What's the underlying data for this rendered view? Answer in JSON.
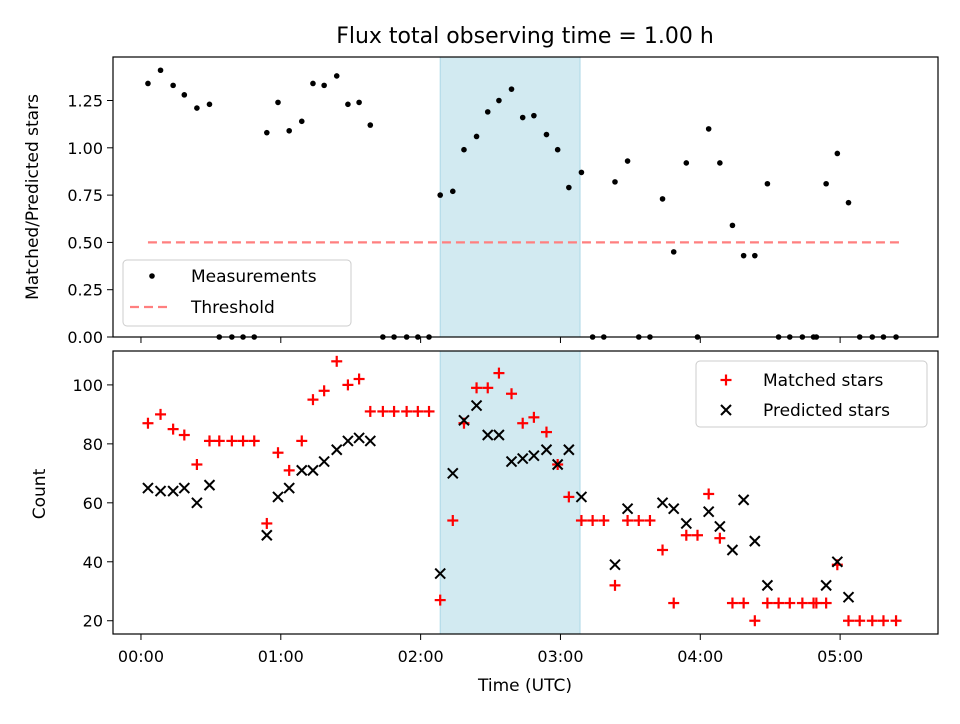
{
  "chart_data": {
    "title": "Flux total observing time = 1.00 h",
    "xlabel": "Time (UTC)",
    "x_ticks": [
      "00:00",
      "01:00",
      "02:00",
      "03:00",
      "04:00",
      "05:00"
    ],
    "x_tick_hours": [
      0,
      1,
      2,
      3,
      4,
      5
    ],
    "xlim_hours": [
      -0.2,
      5.7
    ],
    "highlight_span_hours": [
      2.14,
      3.14
    ],
    "highlight_color": "#add8e6",
    "panels": [
      {
        "type": "scatter",
        "ylabel": "Matched/Predicted stars",
        "ylim": [
          0,
          1.48
        ],
        "y_ticks": [
          "0.00",
          "0.25",
          "0.50",
          "0.75",
          "1.00",
          "1.25"
        ],
        "y_tick_values": [
          0,
          0.25,
          0.5,
          0.75,
          1.0,
          1.25
        ],
        "legend": {
          "position": "lower-left",
          "measurements_label": "Measurements",
          "threshold_label": "Threshold"
        },
        "threshold": {
          "value": 0.5,
          "x_range_hours": [
            0.05,
            5.43
          ],
          "color": "#ff7f7f"
        },
        "measurements": {
          "color": "#000000",
          "points": [
            [
              0.05,
              1.34
            ],
            [
              0.14,
              1.41
            ],
            [
              0.23,
              1.33
            ],
            [
              0.31,
              1.28
            ],
            [
              0.4,
              1.21
            ],
            [
              0.49,
              1.23
            ],
            [
              0.56,
              0
            ],
            [
              0.65,
              0
            ],
            [
              0.73,
              0
            ],
            [
              0.81,
              0
            ],
            [
              0.9,
              1.08
            ],
            [
              0.98,
              1.24
            ],
            [
              1.06,
              1.09
            ],
            [
              1.15,
              1.14
            ],
            [
              1.23,
              1.34
            ],
            [
              1.31,
              1.33
            ],
            [
              1.4,
              1.38
            ],
            [
              1.48,
              1.23
            ],
            [
              1.56,
              1.24
            ],
            [
              1.64,
              1.12
            ],
            [
              1.73,
              0
            ],
            [
              1.81,
              0
            ],
            [
              1.9,
              0
            ],
            [
              1.98,
              0
            ],
            [
              2.06,
              0
            ],
            [
              2.14,
              0.75
            ],
            [
              2.23,
              0.77
            ],
            [
              2.31,
              0.99
            ],
            [
              2.4,
              1.06
            ],
            [
              2.48,
              1.19
            ],
            [
              2.56,
              1.25
            ],
            [
              2.65,
              1.31
            ],
            [
              2.73,
              1.16
            ],
            [
              2.81,
              1.17
            ],
            [
              2.9,
              1.07
            ],
            [
              2.98,
              0.99
            ],
            [
              3.06,
              0.79
            ],
            [
              3.15,
              0.87
            ],
            [
              3.23,
              0
            ],
            [
              3.31,
              0
            ],
            [
              3.39,
              0.82
            ],
            [
              3.48,
              0.93
            ],
            [
              3.56,
              0
            ],
            [
              3.64,
              0
            ],
            [
              3.73,
              0.73
            ],
            [
              3.81,
              0.45
            ],
            [
              3.9,
              0.92
            ],
            [
              3.98,
              0
            ],
            [
              4.06,
              1.1
            ],
            [
              4.14,
              0.92
            ],
            [
              4.23,
              0.59
            ],
            [
              4.31,
              0.43
            ],
            [
              4.39,
              0.43
            ],
            [
              4.48,
              0.81
            ],
            [
              4.56,
              0
            ],
            [
              4.64,
              0
            ],
            [
              4.73,
              0
            ],
            [
              4.81,
              0
            ],
            [
              4.83,
              0
            ],
            [
              4.9,
              0.81
            ],
            [
              4.98,
              0.97
            ],
            [
              5.06,
              0.71
            ],
            [
              5.14,
              0
            ],
            [
              5.23,
              0
            ],
            [
              5.31,
              0
            ],
            [
              5.4,
              0
            ]
          ]
        }
      },
      {
        "type": "scatter",
        "ylabel": "Count",
        "ylim": [
          15.5,
          111.5
        ],
        "y_ticks": [
          "20",
          "40",
          "60",
          "80",
          "100"
        ],
        "y_tick_values": [
          20,
          40,
          60,
          80,
          100
        ],
        "legend": {
          "position": "upper-right"
        },
        "series": [
          {
            "name": "Matched stars",
            "marker": "+",
            "color": "#ff0000",
            "points": [
              [
                0.05,
                87
              ],
              [
                0.14,
                90
              ],
              [
                0.23,
                85
              ],
              [
                0.31,
                83
              ],
              [
                0.4,
                73
              ],
              [
                0.49,
                81
              ],
              [
                0.56,
                81
              ],
              [
                0.65,
                81
              ],
              [
                0.73,
                81
              ],
              [
                0.81,
                81
              ],
              [
                0.9,
                53
              ],
              [
                0.98,
                77
              ],
              [
                1.06,
                71
              ],
              [
                1.15,
                81
              ],
              [
                1.23,
                95
              ],
              [
                1.31,
                98
              ],
              [
                1.4,
                108
              ],
              [
                1.48,
                100
              ],
              [
                1.56,
                102
              ],
              [
                1.64,
                91
              ],
              [
                1.73,
                91
              ],
              [
                1.81,
                91
              ],
              [
                1.9,
                91
              ],
              [
                1.98,
                91
              ],
              [
                2.06,
                91
              ],
              [
                2.14,
                27
              ],
              [
                2.23,
                54
              ],
              [
                2.31,
                87
              ],
              [
                2.4,
                99
              ],
              [
                2.48,
                99
              ],
              [
                2.56,
                104
              ],
              [
                2.65,
                97
              ],
              [
                2.73,
                87
              ],
              [
                2.81,
                89
              ],
              [
                2.9,
                84
              ],
              [
                2.98,
                73
              ],
              [
                3.06,
                62
              ],
              [
                3.15,
                54
              ],
              [
                3.23,
                54
              ],
              [
                3.31,
                54
              ],
              [
                3.39,
                32
              ],
              [
                3.48,
                54
              ],
              [
                3.56,
                54
              ],
              [
                3.64,
                54
              ],
              [
                3.73,
                44
              ],
              [
                3.81,
                26
              ],
              [
                3.9,
                49
              ],
              [
                3.98,
                49
              ],
              [
                4.06,
                63
              ],
              [
                4.14,
                48
              ],
              [
                4.23,
                26
              ],
              [
                4.31,
                26
              ],
              [
                4.39,
                20
              ],
              [
                4.48,
                26
              ],
              [
                4.56,
                26
              ],
              [
                4.64,
                26
              ],
              [
                4.73,
                26
              ],
              [
                4.81,
                26
              ],
              [
                4.83,
                26
              ],
              [
                4.9,
                26
              ],
              [
                4.98,
                39
              ],
              [
                5.06,
                20
              ],
              [
                5.14,
                20
              ],
              [
                5.23,
                20
              ],
              [
                5.31,
                20
              ],
              [
                5.4,
                20
              ]
            ]
          },
          {
            "name": "Predicted stars",
            "marker": "x",
            "color": "#000000",
            "points": [
              [
                0.05,
                65
              ],
              [
                0.14,
                64
              ],
              [
                0.23,
                64
              ],
              [
                0.31,
                65
              ],
              [
                0.4,
                60
              ],
              [
                0.49,
                66
              ],
              [
                0.9,
                49
              ],
              [
                0.98,
                62
              ],
              [
                1.06,
                65
              ],
              [
                1.15,
                71
              ],
              [
                1.23,
                71
              ],
              [
                1.31,
                74
              ],
              [
                1.4,
                78
              ],
              [
                1.48,
                81
              ],
              [
                1.56,
                82
              ],
              [
                1.64,
                81
              ],
              [
                2.14,
                36
              ],
              [
                2.23,
                70
              ],
              [
                2.31,
                88
              ],
              [
                2.4,
                93
              ],
              [
                2.48,
                83
              ],
              [
                2.56,
                83
              ],
              [
                2.65,
                74
              ],
              [
                2.73,
                75
              ],
              [
                2.81,
                76
              ],
              [
                2.9,
                78
              ],
              [
                2.98,
                73
              ],
              [
                3.06,
                78
              ],
              [
                3.15,
                62
              ],
              [
                3.39,
                39
              ],
              [
                3.48,
                58
              ],
              [
                3.73,
                60
              ],
              [
                3.81,
                58
              ],
              [
                3.9,
                53
              ],
              [
                4.06,
                57
              ],
              [
                4.14,
                52
              ],
              [
                4.23,
                44
              ],
              [
                4.31,
                61
              ],
              [
                4.39,
                47
              ],
              [
                4.48,
                32
              ],
              [
                4.9,
                32
              ],
              [
                4.98,
                40
              ],
              [
                5.06,
                28
              ]
            ]
          }
        ]
      }
    ]
  }
}
